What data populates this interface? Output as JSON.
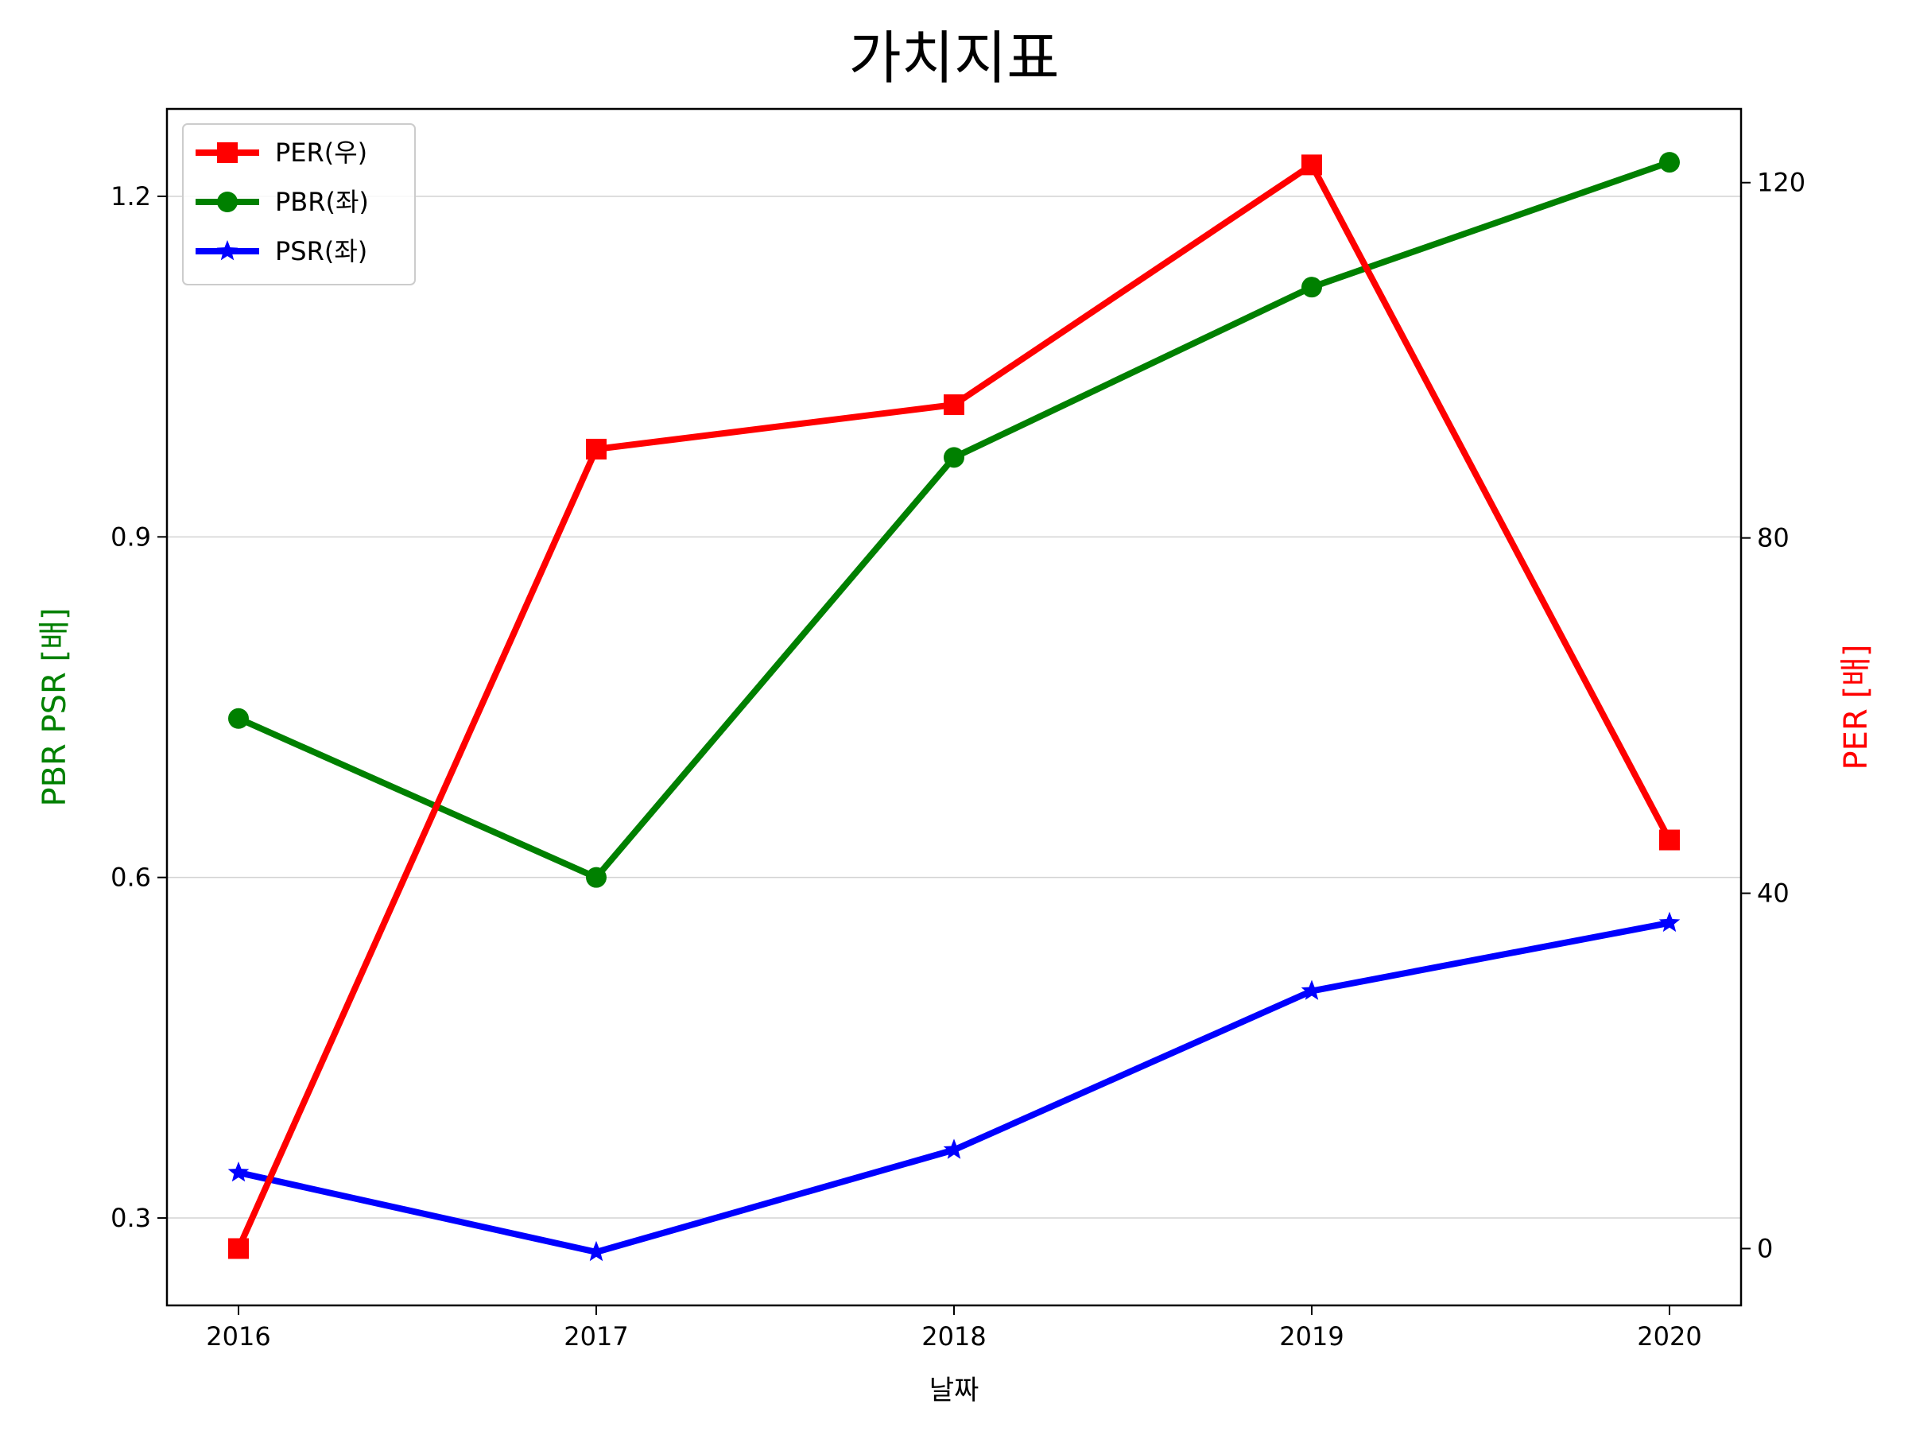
{
  "chart_data": {
    "type": "line",
    "title": "가치지표",
    "xlabel": "날짜",
    "ylabel_left": "PBR PSR [배]",
    "ylabel_right": "PER [배]",
    "x": [
      "2016",
      "2017",
      "2018",
      "2019",
      "2020"
    ],
    "y_left_ticks": [
      "0.3",
      "0.6",
      "0.9",
      "1.2"
    ],
    "y_right_ticks": [
      "0",
      "40",
      "80",
      "120"
    ],
    "ylim_left": [
      0.223,
      1.277
    ],
    "ylim_right": [
      -6.4,
      128.3
    ],
    "grid": true,
    "legend_position": "top-left",
    "series": [
      {
        "name": "PER(우)",
        "axis": "right",
        "color": "#ff0000",
        "marker": "square",
        "values": [
          0,
          90,
          95,
          122,
          46
        ]
      },
      {
        "name": "PBR(좌)",
        "axis": "left",
        "color": "#008000",
        "marker": "circle",
        "values": [
          0.74,
          0.6,
          0.97,
          1.12,
          1.23
        ]
      },
      {
        "name": "PSR(좌)",
        "axis": "left",
        "color": "#0000ff",
        "marker": "star",
        "values": [
          0.34,
          0.27,
          0.36,
          0.5,
          0.56
        ]
      }
    ],
    "colors": {
      "left_axis_label": "#008000",
      "right_axis_label": "#ff0000",
      "grid": "#d3d3d3"
    }
  }
}
